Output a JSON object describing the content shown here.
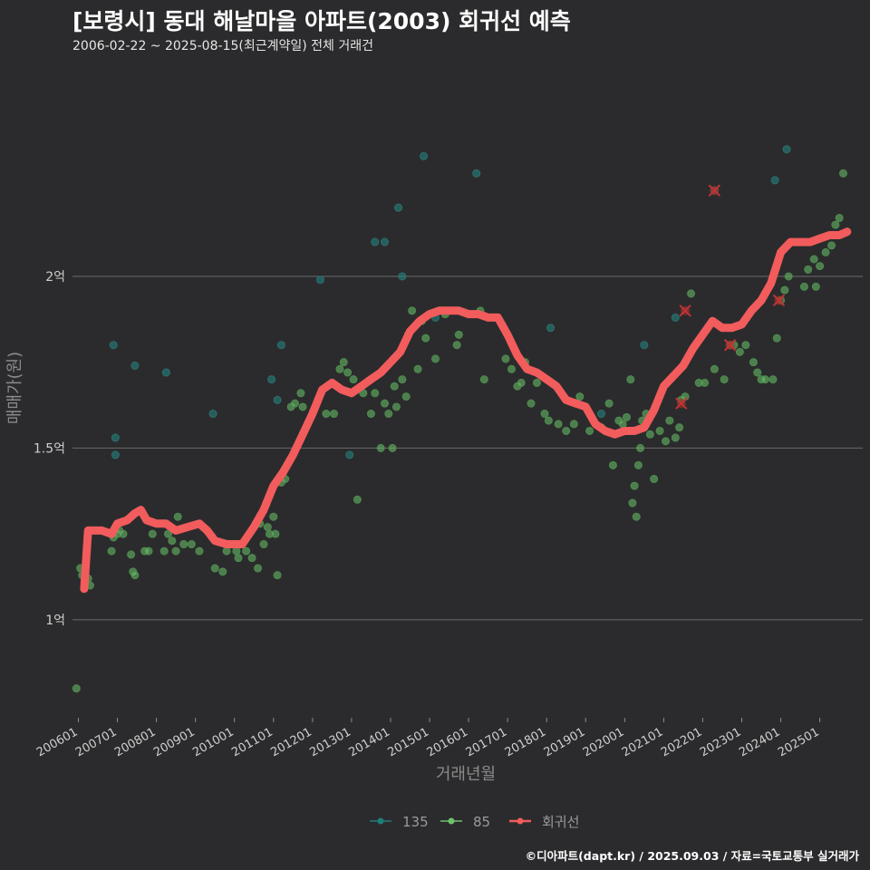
{
  "chart_data": {
    "type": "scatter",
    "title": "[보령시] 동대 해날마을 아파트(2003) 회귀선 예측",
    "subtitle": "2006-02-22 ~ 2025-08-15(최근계약일) 전체 거래건",
    "caption": "©디아파트(dapt.kr) / 2025.09.03 / 자료=국토교통부 실거래가",
    "xlabel": "거래년월",
    "ylabel": "매매가(원)",
    "xlim": [
      2005.85,
      2026.1
    ],
    "ylim": [
      0.72,
      2.62
    ],
    "y_unit": "억",
    "y_ticks": [
      {
        "value": 1.0,
        "label": "1억"
      },
      {
        "value": 1.5,
        "label": "1.5억"
      },
      {
        "value": 2.0,
        "label": "2억"
      }
    ],
    "x_ticks": [
      {
        "value": 2006,
        "label": "200601"
      },
      {
        "value": 2007,
        "label": "200701"
      },
      {
        "value": 2008,
        "label": "200801"
      },
      {
        "value": 2009,
        "label": "200901"
      },
      {
        "value": 2010,
        "label": "201001"
      },
      {
        "value": 2011,
        "label": "201101"
      },
      {
        "value": 2012,
        "label": "201201"
      },
      {
        "value": 2013,
        "label": "201301"
      },
      {
        "value": 2014,
        "label": "201401"
      },
      {
        "value": 2015,
        "label": "201501"
      },
      {
        "value": 2016,
        "label": "201601"
      },
      {
        "value": 2017,
        "label": "201701"
      },
      {
        "value": 2018,
        "label": "201801"
      },
      {
        "value": 2019,
        "label": "201901"
      },
      {
        "value": 2020,
        "label": "202001"
      },
      {
        "value": 2021,
        "label": "202101"
      },
      {
        "value": 2022,
        "label": "202201"
      },
      {
        "value": 2023,
        "label": "202301"
      },
      {
        "value": 2024,
        "label": "202401"
      },
      {
        "value": 2025,
        "label": "202501"
      }
    ],
    "grid": true,
    "legend_position": "bottom",
    "legend": [
      {
        "name": "135",
        "color": "#1f7f7a",
        "kind": "point"
      },
      {
        "name": "85",
        "color": "#6cc26b",
        "kind": "point"
      },
      {
        "name": "회귀선",
        "color": "#f25c5c",
        "kind": "line"
      }
    ],
    "series": [
      {
        "name": "135",
        "color": "#1f8a86",
        "points": [
          [
            2006.9,
            1.8
          ],
          [
            2006.95,
            1.53
          ],
          [
            2006.95,
            1.48
          ],
          [
            2007.45,
            1.74
          ],
          [
            2008.25,
            1.72
          ],
          [
            2009.45,
            1.6
          ],
          [
            2010.95,
            1.7
          ],
          [
            2011.1,
            1.64
          ],
          [
            2011.2,
            1.8
          ],
          [
            2012.2,
            1.99
          ],
          [
            2012.95,
            1.48
          ],
          [
            2013.6,
            2.1
          ],
          [
            2013.85,
            2.1
          ],
          [
            2014.2,
            2.2
          ],
          [
            2014.3,
            2.0
          ],
          [
            2014.85,
            2.35
          ],
          [
            2015.15,
            1.88
          ],
          [
            2016.2,
            2.3
          ],
          [
            2018.1,
            1.85
          ],
          [
            2019.4,
            1.6
          ],
          [
            2020.5,
            1.8
          ],
          [
            2021.3,
            1.88
          ],
          [
            2022.3,
            2.25
          ],
          [
            2023.85,
            2.28
          ],
          [
            2024.15,
            2.37
          ]
        ]
      },
      {
        "name": "85",
        "color": "#6cc26b",
        "points": [
          [
            2005.95,
            0.8
          ],
          [
            2006.05,
            1.15
          ],
          [
            2006.1,
            1.13
          ],
          [
            2006.25,
            1.12
          ],
          [
            2006.3,
            1.1
          ],
          [
            2006.85,
            1.2
          ],
          [
            2006.9,
            1.24
          ],
          [
            2007.0,
            1.25
          ],
          [
            2007.05,
            1.26
          ],
          [
            2007.15,
            1.25
          ],
          [
            2007.35,
            1.19
          ],
          [
            2007.4,
            1.14
          ],
          [
            2007.45,
            1.13
          ],
          [
            2007.7,
            1.2
          ],
          [
            2007.8,
            1.2
          ],
          [
            2007.9,
            1.25
          ],
          [
            2008.2,
            1.2
          ],
          [
            2008.3,
            1.25
          ],
          [
            2008.4,
            1.23
          ],
          [
            2008.5,
            1.2
          ],
          [
            2008.55,
            1.3
          ],
          [
            2008.7,
            1.22
          ],
          [
            2008.9,
            1.22
          ],
          [
            2009.1,
            1.2
          ],
          [
            2009.5,
            1.15
          ],
          [
            2009.7,
            1.14
          ],
          [
            2009.8,
            1.2
          ],
          [
            2009.95,
            1.22
          ],
          [
            2010.05,
            1.2
          ],
          [
            2010.1,
            1.18
          ],
          [
            2010.3,
            1.2
          ],
          [
            2010.45,
            1.18
          ],
          [
            2010.6,
            1.15
          ],
          [
            2010.65,
            1.28
          ],
          [
            2010.75,
            1.22
          ],
          [
            2010.85,
            1.27
          ],
          [
            2010.9,
            1.25
          ],
          [
            2011.0,
            1.3
          ],
          [
            2011.05,
            1.25
          ],
          [
            2011.1,
            1.13
          ],
          [
            2011.2,
            1.4
          ],
          [
            2011.3,
            1.41
          ],
          [
            2011.45,
            1.62
          ],
          [
            2011.55,
            1.63
          ],
          [
            2011.7,
            1.66
          ],
          [
            2011.75,
            1.62
          ],
          [
            2012.35,
            1.6
          ],
          [
            2012.55,
            1.6
          ],
          [
            2012.7,
            1.73
          ],
          [
            2012.8,
            1.75
          ],
          [
            2012.9,
            1.72
          ],
          [
            2013.05,
            1.7
          ],
          [
            2013.15,
            1.35
          ],
          [
            2013.3,
            1.66
          ],
          [
            2013.5,
            1.6
          ],
          [
            2013.6,
            1.66
          ],
          [
            2013.75,
            1.5
          ],
          [
            2013.85,
            1.63
          ],
          [
            2013.95,
            1.6
          ],
          [
            2014.05,
            1.5
          ],
          [
            2014.1,
            1.68
          ],
          [
            2014.15,
            1.62
          ],
          [
            2014.3,
            1.7
          ],
          [
            2014.4,
            1.65
          ],
          [
            2014.45,
            1.83
          ],
          [
            2014.55,
            1.9
          ],
          [
            2014.7,
            1.73
          ],
          [
            2014.8,
            1.87
          ],
          [
            2014.9,
            1.82
          ],
          [
            2015.15,
            1.76
          ],
          [
            2015.4,
            1.89
          ],
          [
            2015.7,
            1.8
          ],
          [
            2015.75,
            1.83
          ],
          [
            2016.3,
            1.9
          ],
          [
            2016.4,
            1.7
          ],
          [
            2016.95,
            1.76
          ],
          [
            2017.1,
            1.73
          ],
          [
            2017.25,
            1.68
          ],
          [
            2017.35,
            1.69
          ],
          [
            2017.45,
            1.75
          ],
          [
            2017.6,
            1.63
          ],
          [
            2017.75,
            1.69
          ],
          [
            2017.95,
            1.6
          ],
          [
            2018.05,
            1.58
          ],
          [
            2018.3,
            1.57
          ],
          [
            2018.5,
            1.55
          ],
          [
            2018.7,
            1.57
          ],
          [
            2018.85,
            1.65
          ],
          [
            2019.1,
            1.55
          ],
          [
            2019.4,
            1.56
          ],
          [
            2019.6,
            1.63
          ],
          [
            2019.7,
            1.45
          ],
          [
            2019.85,
            1.58
          ],
          [
            2019.95,
            1.57
          ],
          [
            2020.05,
            1.59
          ],
          [
            2020.15,
            1.7
          ],
          [
            2020.2,
            1.34
          ],
          [
            2020.25,
            1.39
          ],
          [
            2020.3,
            1.3
          ],
          [
            2020.35,
            1.45
          ],
          [
            2020.4,
            1.5
          ],
          [
            2020.45,
            1.58
          ],
          [
            2020.55,
            1.6
          ],
          [
            2020.65,
            1.54
          ],
          [
            2020.75,
            1.41
          ],
          [
            2020.9,
            1.55
          ],
          [
            2021.05,
            1.52
          ],
          [
            2021.15,
            1.58
          ],
          [
            2021.3,
            1.53
          ],
          [
            2021.4,
            1.56
          ],
          [
            2021.45,
            1.64
          ],
          [
            2021.55,
            1.65
          ],
          [
            2021.7,
            1.95
          ],
          [
            2021.9,
            1.69
          ],
          [
            2022.05,
            1.69
          ],
          [
            2022.3,
            1.73
          ],
          [
            2022.55,
            1.7
          ],
          [
            2022.7,
            1.8
          ],
          [
            2022.8,
            1.8
          ],
          [
            2022.95,
            1.78
          ],
          [
            2023.1,
            1.8
          ],
          [
            2023.3,
            1.75
          ],
          [
            2023.4,
            1.72
          ],
          [
            2023.5,
            1.7
          ],
          [
            2023.6,
            1.7
          ],
          [
            2023.8,
            1.7
          ],
          [
            2023.9,
            1.82
          ],
          [
            2024.0,
            1.93
          ],
          [
            2024.1,
            1.96
          ],
          [
            2024.2,
            2.0
          ],
          [
            2024.6,
            1.97
          ],
          [
            2024.7,
            2.02
          ],
          [
            2024.85,
            2.05
          ],
          [
            2024.9,
            1.97
          ],
          [
            2025.0,
            2.03
          ],
          [
            2025.15,
            2.07
          ],
          [
            2025.3,
            2.09
          ],
          [
            2025.4,
            2.15
          ],
          [
            2025.5,
            2.17
          ],
          [
            2025.6,
            2.3
          ]
        ]
      },
      {
        "name": "회귀선",
        "color": "#f25c5c",
        "points": [
          [
            2006.15,
            1.09
          ],
          [
            2006.25,
            1.26
          ],
          [
            2006.6,
            1.26
          ],
          [
            2006.85,
            1.25
          ],
          [
            2007.0,
            1.28
          ],
          [
            2007.25,
            1.29
          ],
          [
            2007.45,
            1.31
          ],
          [
            2007.6,
            1.32
          ],
          [
            2007.75,
            1.29
          ],
          [
            2008.0,
            1.28
          ],
          [
            2008.25,
            1.28
          ],
          [
            2008.5,
            1.26
          ],
          [
            2008.8,
            1.27
          ],
          [
            2009.1,
            1.28
          ],
          [
            2009.3,
            1.26
          ],
          [
            2009.5,
            1.23
          ],
          [
            2009.8,
            1.22
          ],
          [
            2010.2,
            1.22
          ],
          [
            2010.5,
            1.27
          ],
          [
            2010.75,
            1.32
          ],
          [
            2011.0,
            1.39
          ],
          [
            2011.25,
            1.43
          ],
          [
            2011.5,
            1.48
          ],
          [
            2011.75,
            1.54
          ],
          [
            2012.0,
            1.6
          ],
          [
            2012.25,
            1.67
          ],
          [
            2012.5,
            1.69
          ],
          [
            2012.75,
            1.67
          ],
          [
            2013.0,
            1.66
          ],
          [
            2013.25,
            1.68
          ],
          [
            2013.5,
            1.7
          ],
          [
            2013.75,
            1.72
          ],
          [
            2014.0,
            1.75
          ],
          [
            2014.25,
            1.78
          ],
          [
            2014.5,
            1.84
          ],
          [
            2014.75,
            1.87
          ],
          [
            2015.0,
            1.89
          ],
          [
            2015.25,
            1.9
          ],
          [
            2015.5,
            1.9
          ],
          [
            2015.75,
            1.9
          ],
          [
            2016.0,
            1.89
          ],
          [
            2016.25,
            1.89
          ],
          [
            2016.5,
            1.88
          ],
          [
            2016.75,
            1.88
          ],
          [
            2017.0,
            1.83
          ],
          [
            2017.25,
            1.77
          ],
          [
            2017.5,
            1.73
          ],
          [
            2017.75,
            1.72
          ],
          [
            2018.0,
            1.7
          ],
          [
            2018.25,
            1.68
          ],
          [
            2018.5,
            1.64
          ],
          [
            2018.75,
            1.63
          ],
          [
            2019.0,
            1.62
          ],
          [
            2019.25,
            1.57
          ],
          [
            2019.5,
            1.55
          ],
          [
            2019.75,
            1.54
          ],
          [
            2020.0,
            1.55
          ],
          [
            2020.25,
            1.55
          ],
          [
            2020.5,
            1.56
          ],
          [
            2020.75,
            1.61
          ],
          [
            2021.0,
            1.68
          ],
          [
            2021.25,
            1.71
          ],
          [
            2021.5,
            1.74
          ],
          [
            2021.75,
            1.79
          ],
          [
            2022.0,
            1.83
          ],
          [
            2022.25,
            1.87
          ],
          [
            2022.5,
            1.85
          ],
          [
            2022.75,
            1.85
          ],
          [
            2023.0,
            1.86
          ],
          [
            2023.25,
            1.9
          ],
          [
            2023.5,
            1.93
          ],
          [
            2023.75,
            1.98
          ],
          [
            2024.0,
            2.07
          ],
          [
            2024.25,
            2.1
          ],
          [
            2024.5,
            2.1
          ],
          [
            2024.75,
            2.1
          ],
          [
            2025.0,
            2.11
          ],
          [
            2025.25,
            2.12
          ],
          [
            2025.5,
            2.12
          ],
          [
            2025.7,
            2.13
          ]
        ]
      }
    ],
    "outliers": [
      [
        2021.45,
        1.63
      ],
      [
        2021.55,
        1.9
      ],
      [
        2022.3,
        2.25
      ],
      [
        2022.7,
        1.8
      ],
      [
        2023.95,
        1.93
      ]
    ]
  }
}
